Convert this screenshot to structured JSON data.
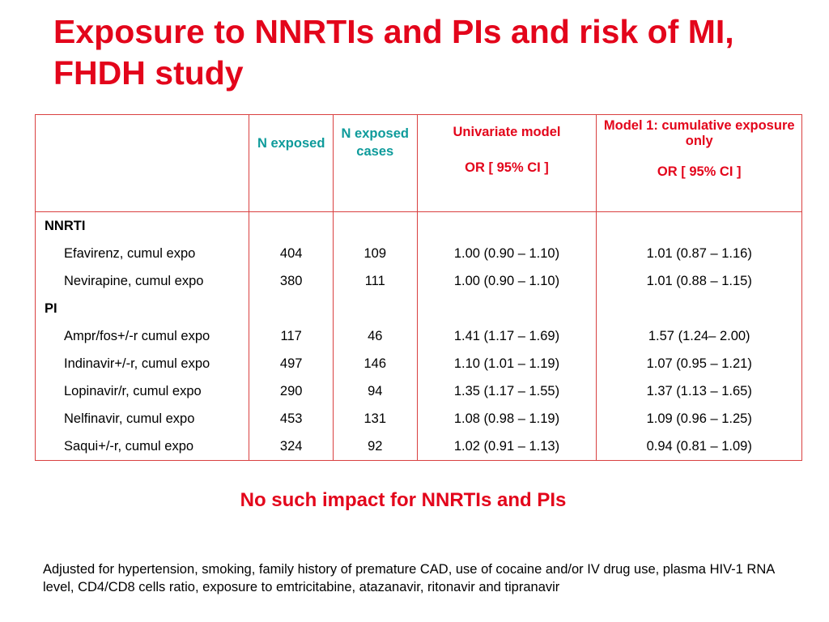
{
  "slide": {
    "title": "Exposure to NNRTIs and PIs and risk of MI, FHDH study",
    "impact": "No such impact for NNRTIs and PIs",
    "footnote": "Adjusted for hypertension, smoking, family history of premature CAD, use of cocaine and/or IV drug use, plasma HIV-1 RNA level, CD4/CD8 cells ratio, exposure to emtricitabine,  atazanavir, ritonavir and tipranavir"
  },
  "table": {
    "header": {
      "n_exposed": "N exposed",
      "n_exposed_cases": "N exposed cases",
      "univariate_title": "Univariate model",
      "univariate_sub": "OR [ 95% CI ]",
      "model1_title": "Model 1: cumulative exposure only",
      "model1_sub": "OR [ 95% CI ]"
    },
    "groups": {
      "nnrti": "NNRTI",
      "pi": "PI"
    },
    "nnrti_rows": [
      {
        "drug": "Efavirenz, cumul expo",
        "n": "404",
        "cases": "109",
        "univariate": "1.00 (0.90 – 1.10)",
        "model1": "1.01 (0.87 – 1.16)"
      },
      {
        "drug": "Nevirapine, cumul expo",
        "n": "380",
        "cases": "111",
        "univariate": "1.00 (0.90 – 1.10)",
        "model1": "1.01 (0.88 – 1.15)"
      }
    ],
    "pi_rows": [
      {
        "drug": "Ampr/fos+/-r cumul expo",
        "n": "117",
        "cases": "46",
        "univariate": "1.41 (1.17 – 1.69)",
        "model1": "1.57 (1.24– 2.00)"
      },
      {
        "drug": "Indinavir+/-r, cumul expo",
        "n": "497",
        "cases": "146",
        "univariate": "1.10 (1.01 – 1.19)",
        "model1": "1.07 (0.95 – 1.21)"
      },
      {
        "drug": "Lopinavir/r, cumul expo",
        "n": "290",
        "cases": "94",
        "univariate": "1.35 (1.17 – 1.55)",
        "model1": "1.37 (1.13 – 1.65)"
      },
      {
        "drug": "Nelfinavir, cumul expo",
        "n": "453",
        "cases": "131",
        "univariate": "1.08 (0.98 – 1.19)",
        "model1": "1.09 (0.96 – 1.25)"
      },
      {
        "drug": "Saqui+/-r, cumul expo",
        "n": "324",
        "cases": "92",
        "univariate": "1.02 (0.91 – 1.13)",
        "model1": "0.94 (0.81 – 1.09)"
      }
    ]
  }
}
